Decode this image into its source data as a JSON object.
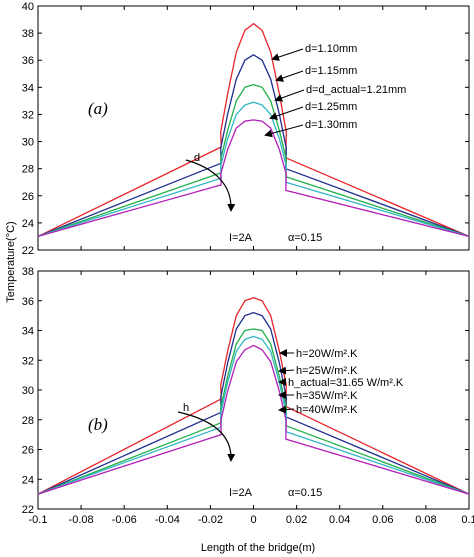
{
  "chart_data": [
    {
      "type": "line",
      "panel_label": "(a)",
      "xlim": [
        -0.1,
        0.1
      ],
      "ylim": [
        22,
        40
      ],
      "xticks": [
        "-0.1",
        "-0.08",
        "-0.06",
        "-0.04",
        "-0.02",
        "0",
        "0.02",
        "0.04",
        "0.06",
        "0.08",
        "0.1"
      ],
      "yticks": [
        "22",
        "24",
        "26",
        "28",
        "30",
        "32",
        "34",
        "36",
        "38",
        "40"
      ],
      "series": [
        {
          "name": "d=1.10mm",
          "color": "#e8242a",
          "x": [
            -0.1,
            -0.015,
            -0.0152,
            -0.012,
            -0.008,
            -0.004,
            0,
            0.004,
            0.008,
            0.012,
            0.0152,
            0.015,
            0.1
          ],
          "y": [
            23,
            29.6,
            30.7,
            33.5,
            36.6,
            38.2,
            38.7,
            38.2,
            36.6,
            33.5,
            30.7,
            28.8,
            23
          ]
        },
        {
          "name": "d=1.15mm",
          "color": "#1f2f8f",
          "x": [
            -0.1,
            -0.015,
            -0.0152,
            -0.012,
            -0.008,
            -0.004,
            0,
            0.004,
            0.008,
            0.012,
            0.0152,
            0.015,
            0.1
          ],
          "y": [
            23,
            28.4,
            29.5,
            32.0,
            34.6,
            36.0,
            36.4,
            36.0,
            34.6,
            32.0,
            29.5,
            28.0,
            23
          ]
        },
        {
          "name": "d=d_actual=1.21mm",
          "color": "#22b04a",
          "x": [
            -0.1,
            -0.015,
            -0.0152,
            -0.012,
            -0.008,
            -0.004,
            0,
            0.004,
            0.008,
            0.012,
            0.0152,
            0.015,
            0.1
          ],
          "y": [
            23,
            27.7,
            28.7,
            30.8,
            33.0,
            34.0,
            34.2,
            34.0,
            33.0,
            30.8,
            28.7,
            27.4,
            23
          ]
        },
        {
          "name": "d=1.25mm",
          "color": "#33b5c4",
          "x": [
            -0.1,
            -0.015,
            -0.0152,
            -0.012,
            -0.008,
            -0.004,
            0,
            0.004,
            0.008,
            0.012,
            0.0152,
            0.015,
            0.1
          ],
          "y": [
            23,
            27.3,
            28.2,
            30.2,
            32.0,
            32.7,
            32.9,
            32.7,
            32.0,
            30.2,
            28.2,
            27.0,
            23
          ]
        },
        {
          "name": "d=1.30mm",
          "color": "#b21fb8",
          "x": [
            -0.1,
            -0.015,
            -0.0152,
            -0.012,
            -0.008,
            -0.004,
            0,
            0.004,
            0.008,
            0.012,
            0.0152,
            0.015,
            0.1
          ],
          "y": [
            23,
            26.8,
            27.6,
            29.4,
            31.0,
            31.5,
            31.6,
            31.5,
            31.0,
            29.4,
            27.6,
            26.4,
            23
          ]
        }
      ],
      "annotations": {
        "variable": "d",
        "current": "I=2A",
        "alpha": "α=0.15"
      }
    },
    {
      "type": "line",
      "panel_label": "(b)",
      "xlim": [
        -0.1,
        0.1
      ],
      "ylim": [
        22,
        38
      ],
      "xticks": [
        "-0.1",
        "-0.08",
        "-0.06",
        "-0.04",
        "-0.02",
        "0",
        "0.02",
        "0.04",
        "0.06",
        "0.08",
        "0.1"
      ],
      "yticks": [
        "22",
        "24",
        "26",
        "28",
        "30",
        "32",
        "34",
        "36",
        "38"
      ],
      "series": [
        {
          "name": "h=20W/m².K",
          "color": "#e8242a",
          "x": [
            -0.1,
            -0.015,
            -0.0152,
            -0.012,
            -0.008,
            -0.004,
            0,
            0.004,
            0.008,
            0.012,
            0.0152,
            0.015,
            0.1
          ],
          "y": [
            23,
            29.4,
            30.3,
            32.6,
            35.0,
            36.0,
            36.2,
            36.0,
            35.0,
            32.6,
            30.3,
            28.9,
            23
          ]
        },
        {
          "name": "h=25W/m².K",
          "color": "#1f2f8f",
          "x": [
            -0.1,
            -0.015,
            -0.0152,
            -0.012,
            -0.008,
            -0.004,
            0,
            0.004,
            0.008,
            0.012,
            0.0152,
            0.015,
            0.1
          ],
          "y": [
            23,
            28.5,
            29.5,
            31.8,
            34.1,
            35.0,
            35.2,
            35.0,
            34.1,
            31.8,
            29.5,
            28.2,
            23
          ]
        },
        {
          "name": "h_actual=31.65 W/m².K",
          "color": "#22b04a",
          "x": [
            -0.1,
            -0.015,
            -0.0152,
            -0.012,
            -0.008,
            -0.004,
            0,
            0.004,
            0.008,
            0.012,
            0.0152,
            0.015,
            0.1
          ],
          "y": [
            23,
            27.8,
            28.8,
            30.9,
            33.1,
            34.0,
            34.1,
            34.0,
            33.1,
            30.9,
            28.8,
            27.6,
            23
          ]
        },
        {
          "name": "h=35W/m².K",
          "color": "#33b5c4",
          "x": [
            -0.1,
            -0.015,
            -0.0152,
            -0.012,
            -0.008,
            -0.004,
            0,
            0.004,
            0.008,
            0.012,
            0.0152,
            0.015,
            0.1
          ],
          "y": [
            23,
            27.5,
            28.4,
            30.5,
            32.6,
            33.4,
            33.6,
            33.4,
            32.6,
            30.5,
            28.4,
            27.2,
            23
          ]
        },
        {
          "name": "h=40W/m².K",
          "color": "#b21fb8",
          "x": [
            -0.1,
            -0.015,
            -0.0152,
            -0.012,
            -0.008,
            -0.004,
            0,
            0.004,
            0.008,
            0.012,
            0.0152,
            0.015,
            0.1
          ],
          "y": [
            23,
            27.0,
            27.9,
            29.9,
            31.9,
            32.7,
            33.0,
            32.7,
            31.9,
            29.9,
            27.9,
            26.7,
            23
          ]
        }
      ],
      "annotations": {
        "variable": "h",
        "current": "I=2A",
        "alpha": "α=0.15"
      }
    }
  ],
  "axes": {
    "xlabel": "Length of the bridge(m)",
    "ylabel": "Temperature(°C)"
  }
}
